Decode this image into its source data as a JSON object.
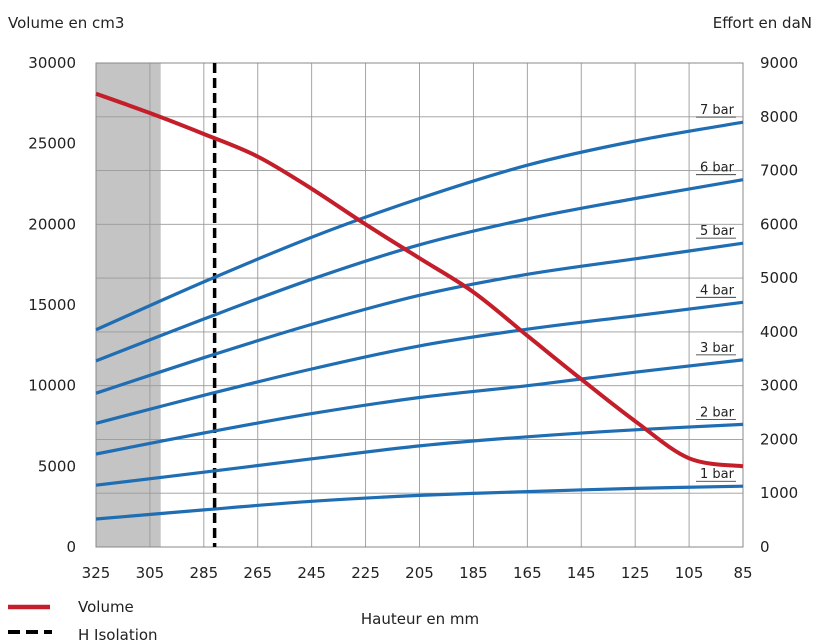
{
  "chart_data": {
    "type": "line",
    "xlabel": "Hauteur en mm",
    "ylabel_left": "Volume en cm3",
    "ylabel_right": "Effort en daN",
    "x_ticks": [
      325,
      305,
      285,
      265,
      245,
      225,
      205,
      185,
      165,
      145,
      125,
      105,
      85
    ],
    "xlim": [
      325,
      85
    ],
    "y_left_ticks": [
      0,
      5000,
      10000,
      15000,
      20000,
      25000,
      30000
    ],
    "ylim_left": [
      0,
      30000
    ],
    "y_right_ticks": [
      0,
      1000,
      2000,
      3000,
      4000,
      5000,
      6000,
      7000,
      8000,
      9000
    ],
    "ylim_right": [
      0,
      9000
    ],
    "grid": true,
    "shaded_region_x": [
      325,
      301
    ],
    "h_isolation_x": 281,
    "colors": {
      "volume": "#c41e2a",
      "force": "#1f6db3",
      "shade": "#c4c4c4",
      "isolation": "#000000"
    },
    "volume": {
      "name": "Volume",
      "axis": "left",
      "x": [
        325,
        305,
        285,
        265,
        245,
        225,
        205,
        185,
        165,
        145,
        125,
        105,
        85
      ],
      "y": [
        28100,
        26900,
        25600,
        24200,
        22200,
        20000,
        17900,
        15800,
        13100,
        10400,
        7800,
        5500,
        5000
      ]
    },
    "force_series": [
      {
        "label": "1 bar",
        "axis": "right",
        "x": [
          325,
          285,
          245,
          205,
          165,
          125,
          85
        ],
        "y": [
          520,
          690,
          850,
          960,
          1030,
          1090,
          1130
        ]
      },
      {
        "label": "2 bar",
        "axis": "right",
        "x": [
          325,
          285,
          245,
          205,
          165,
          125,
          85
        ],
        "y": [
          1150,
          1390,
          1640,
          1880,
          2050,
          2180,
          2280
        ]
      },
      {
        "label": "3 bar",
        "axis": "right",
        "x": [
          325,
          285,
          245,
          205,
          165,
          125,
          85
        ],
        "y": [
          1730,
          2120,
          2480,
          2780,
          3000,
          3250,
          3480
        ]
      },
      {
        "label": "4 bar",
        "axis": "right",
        "x": [
          325,
          285,
          245,
          205,
          165,
          125,
          85
        ],
        "y": [
          2300,
          2820,
          3310,
          3740,
          4050,
          4300,
          4550
        ]
      },
      {
        "label": "5 bar",
        "axis": "right",
        "x": [
          325,
          285,
          245,
          205,
          165,
          125,
          85
        ],
        "y": [
          2860,
          3520,
          4140,
          4680,
          5070,
          5360,
          5650
        ]
      },
      {
        "label": "6 bar",
        "axis": "right",
        "x": [
          325,
          285,
          245,
          205,
          165,
          125,
          85
        ],
        "y": [
          3460,
          4240,
          4980,
          5620,
          6100,
          6480,
          6830
        ]
      },
      {
        "label": "7 bar",
        "axis": "right",
        "x": [
          325,
          285,
          245,
          205,
          165,
          125,
          85
        ],
        "y": [
          4040,
          4930,
          5760,
          6480,
          7100,
          7550,
          7900
        ]
      }
    ],
    "legend": [
      {
        "label": "Volume",
        "style": "solid-red"
      },
      {
        "label": "H Isolation",
        "style": "dashed-black"
      }
    ],
    "legend_position": "bottom-left"
  }
}
